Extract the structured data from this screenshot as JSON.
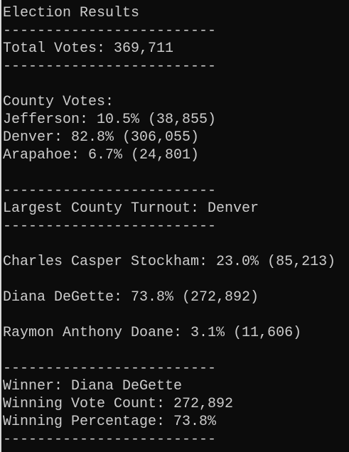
{
  "lines": [
    "Election Results",
    "-------------------------",
    "Total Votes: 369,711",
    "-------------------------",
    "County Votes:",
    "Jefferson: 10.5% (38,855)",
    "Denver: 82.8% (306,055)",
    "Arapahoe: 6.7% (24,801)",
    "-------------------------",
    "Largest County Turnout: Denver",
    "-------------------------",
    "Charles Casper Stockham: 23.0% (85,213)",
    "Diana DeGette: 73.8% (272,892)",
    "Raymon Anthony Doane: 3.1% (11,606)",
    "-------------------------",
    "Winner: Diana DeGette",
    "Winning Vote Count: 272,892",
    "Winning Percentage: 73.8%",
    "-------------------------"
  ]
}
